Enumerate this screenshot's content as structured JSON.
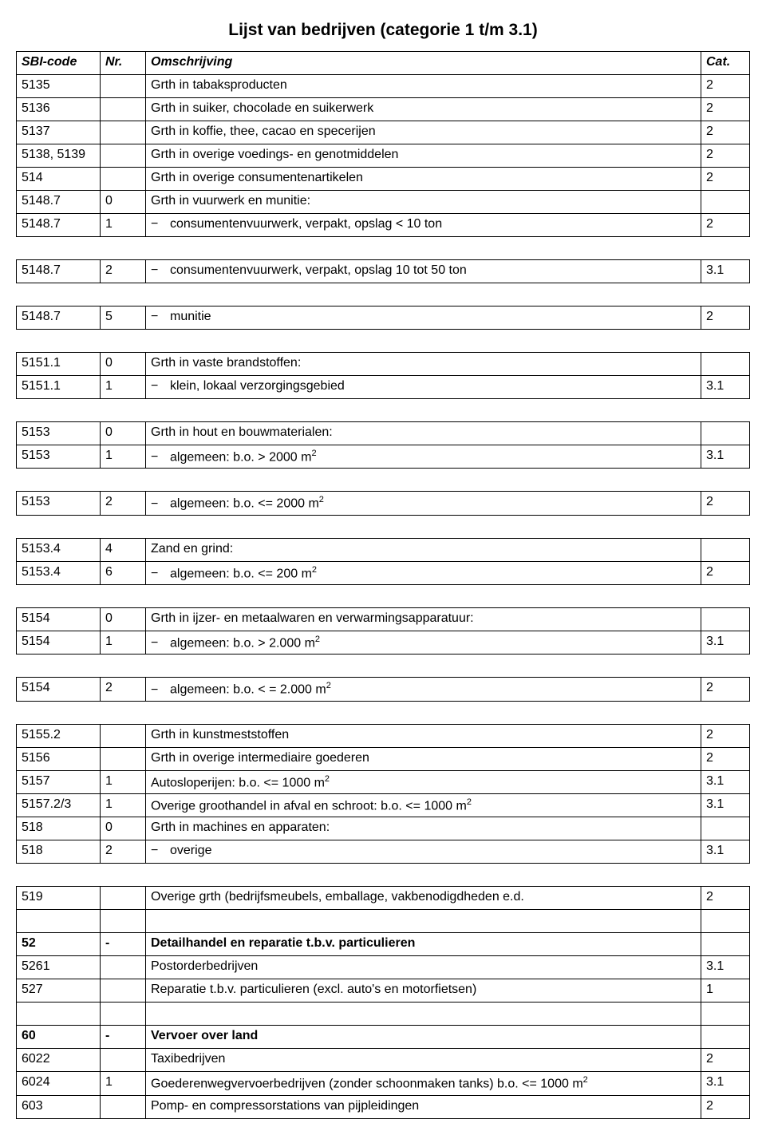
{
  "title": "Lijst van bedrijven (categorie 1 t/m 3.1)",
  "headers": {
    "sbi": "SBI-code",
    "nr": "Nr.",
    "desc": "Omschrijving",
    "cat": "Cat."
  },
  "rows": [
    {
      "sbi": "5135",
      "nr": "",
      "desc": "Grth in tabaksproducten",
      "cat": "2"
    },
    {
      "sbi": "5136",
      "nr": "",
      "desc": "Grth in suiker, chocolade en suikerwerk",
      "cat": "2"
    },
    {
      "sbi": "5137",
      "nr": "",
      "desc": "Grth in koffie, thee, cacao en specerijen",
      "cat": "2"
    },
    {
      "sbi": "5138, 5139",
      "nr": "",
      "desc": "Grth in overige voedings- en genotmiddelen",
      "cat": "2"
    },
    {
      "sbi": "514",
      "nr": "",
      "desc": "Grth in overige consumentenartikelen",
      "cat": "2"
    },
    {
      "sbi": "5148.7",
      "nr": "0",
      "desc": "Grth in vuurwerk en munitie:",
      "cat": ""
    },
    {
      "sbi": "5148.7",
      "nr": "1",
      "desc": "consumentenvuurwerk, verpakt, opslag < 10 ton",
      "cat": "2",
      "bullet": true
    },
    {
      "blank": true
    },
    {
      "sbi": "5148.7",
      "nr": "2",
      "desc": "consumentenvuurwerk, verpakt, opslag 10 tot 50 ton",
      "cat": "3.1",
      "bullet": true
    },
    {
      "blank": true
    },
    {
      "sbi": "5148.7",
      "nr": "5",
      "desc": "munitie",
      "cat": "2",
      "bullet": true
    },
    {
      "blank": true
    },
    {
      "sbi": "5151.1",
      "nr": "0",
      "desc": "Grth in vaste brandstoffen:",
      "cat": ""
    },
    {
      "sbi": "5151.1",
      "nr": "1",
      "desc": "klein, lokaal verzorgingsgebied",
      "cat": "3.1",
      "bullet": true
    },
    {
      "blank": true
    },
    {
      "sbi": "5153",
      "nr": "0",
      "desc": "Grth in hout en bouwmaterialen:",
      "cat": ""
    },
    {
      "sbi": "5153",
      "nr": "1",
      "desc": "algemeen: b.o. > 2000 m²",
      "cat": "3.1",
      "bullet": true,
      "sup": true
    },
    {
      "blank": true
    },
    {
      "sbi": "5153",
      "nr": "2",
      "desc": "algemeen: b.o. <= 2000 m²",
      "cat": "2",
      "bullet": true,
      "sup": true
    },
    {
      "blank": true
    },
    {
      "sbi": "5153.4",
      "nr": "4",
      "desc": "Zand en grind:",
      "cat": ""
    },
    {
      "sbi": "5153.4",
      "nr": "6",
      "desc": "algemeen: b.o. <= 200 m²",
      "cat": "2",
      "bullet": true,
      "sup": true
    },
    {
      "blank": true
    },
    {
      "sbi": "5154",
      "nr": "0",
      "desc": "Grth in ijzer- en metaalwaren en verwarmingsapparatuur:",
      "cat": ""
    },
    {
      "sbi": "5154",
      "nr": "1",
      "desc": "algemeen: b.o. > 2.000 m²",
      "cat": "3.1",
      "bullet": true,
      "sup": true
    },
    {
      "blank": true
    },
    {
      "sbi": "5154",
      "nr": "2",
      "desc": "algemeen: b.o. < = 2.000 m²",
      "cat": "2",
      "bullet": true,
      "sup": true
    },
    {
      "blank": true
    },
    {
      "sbi": "5155.2",
      "nr": "",
      "desc": "Grth in kunstmeststoffen",
      "cat": "2"
    },
    {
      "sbi": "5156",
      "nr": "",
      "desc": "Grth in overige intermediaire goederen",
      "cat": "2"
    },
    {
      "sbi": "5157",
      "nr": "1",
      "desc": "Autosloperijen: b.o. <= 1000 m²",
      "cat": "3.1",
      "sup": true
    },
    {
      "sbi": "5157.2/3",
      "nr": "1",
      "desc": "Overige groothandel in afval en schroot: b.o. <= 1000 m²",
      "cat": "3.1",
      "sup": true
    },
    {
      "sbi": "518",
      "nr": "0",
      "desc": "Grth in machines en apparaten:",
      "cat": ""
    },
    {
      "sbi": "518",
      "nr": "2",
      "desc": "overige",
      "cat": "3.1",
      "bullet": true
    },
    {
      "blank": true
    },
    {
      "sbi": "519",
      "nr": "",
      "desc": "Overige grth (bedrijfsmeubels, emballage, vakbenodigdheden e.d.",
      "cat": "2"
    },
    {
      "sbi": "",
      "nr": "",
      "desc": "",
      "cat": ""
    },
    {
      "sbi": "52",
      "nr": "-",
      "desc": "Detailhandel en reparatie t.b.v. particulieren",
      "cat": "",
      "bold": true
    },
    {
      "sbi": "5261",
      "nr": "",
      "desc": "Postorderbedrijven",
      "cat": "3.1"
    },
    {
      "sbi": "527",
      "nr": "",
      "desc": "Reparatie t.b.v. particulieren (excl. auto's en motorfietsen)",
      "cat": "1"
    },
    {
      "sbi": "",
      "nr": "",
      "desc": "",
      "cat": ""
    },
    {
      "sbi": "60",
      "nr": "-",
      "desc": "Vervoer over land",
      "cat": "",
      "bold": true
    },
    {
      "sbi": "6022",
      "nr": "",
      "desc": "Taxibedrijven",
      "cat": "2"
    },
    {
      "sbi": "6024",
      "nr": "1",
      "desc": "Goederenwegvervoerbedrijven (zonder schoonmaken tanks) b.o. <= 1000 m²",
      "cat": "3.1",
      "sup": true
    },
    {
      "sbi": "603",
      "nr": "",
      "desc": "Pomp- en compressorstations van pijpleidingen",
      "cat": "2"
    }
  ]
}
